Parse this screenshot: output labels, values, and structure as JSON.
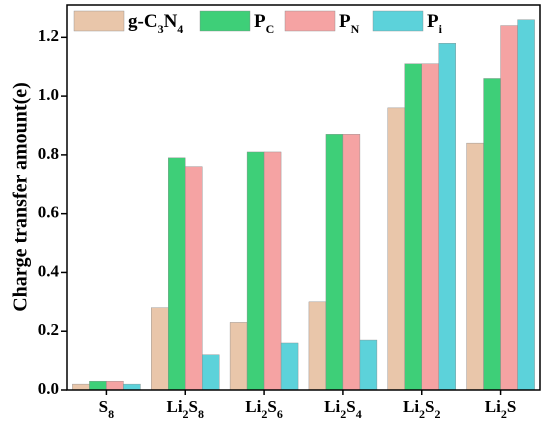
{
  "chart_data": {
    "type": "bar",
    "y_label": "Charge transfer amount(e)",
    "categories": [
      "S8",
      "Li2S8",
      "Li2S6",
      "Li2S4",
      "Li2S2",
      "Li2S"
    ],
    "series": [
      {
        "name": "g-C3N4",
        "color": "#e9c6aa",
        "values": [
          0.02,
          0.28,
          0.23,
          0.3,
          0.96,
          0.84
        ]
      },
      {
        "name": "PC",
        "color": "#3ecf78",
        "values": [
          0.03,
          0.79,
          0.81,
          0.87,
          1.11,
          1.06
        ]
      },
      {
        "name": "PN",
        "color": "#f5a3a3",
        "values": [
          0.03,
          0.76,
          0.81,
          0.87,
          1.11,
          1.24
        ]
      },
      {
        "name": "Pi",
        "color": "#5cd2da",
        "values": [
          0.02,
          0.12,
          0.16,
          0.17,
          1.18,
          1.26
        ]
      }
    ],
    "ylim": [
      0,
      1.31
    ],
    "yticks": [
      {
        "value": 0,
        "label": "0.0"
      },
      0.2,
      0.4,
      0.6,
      0.8,
      {
        "value": 1,
        "label": "1.0"
      },
      1.2
    ],
    "legend": "top"
  }
}
